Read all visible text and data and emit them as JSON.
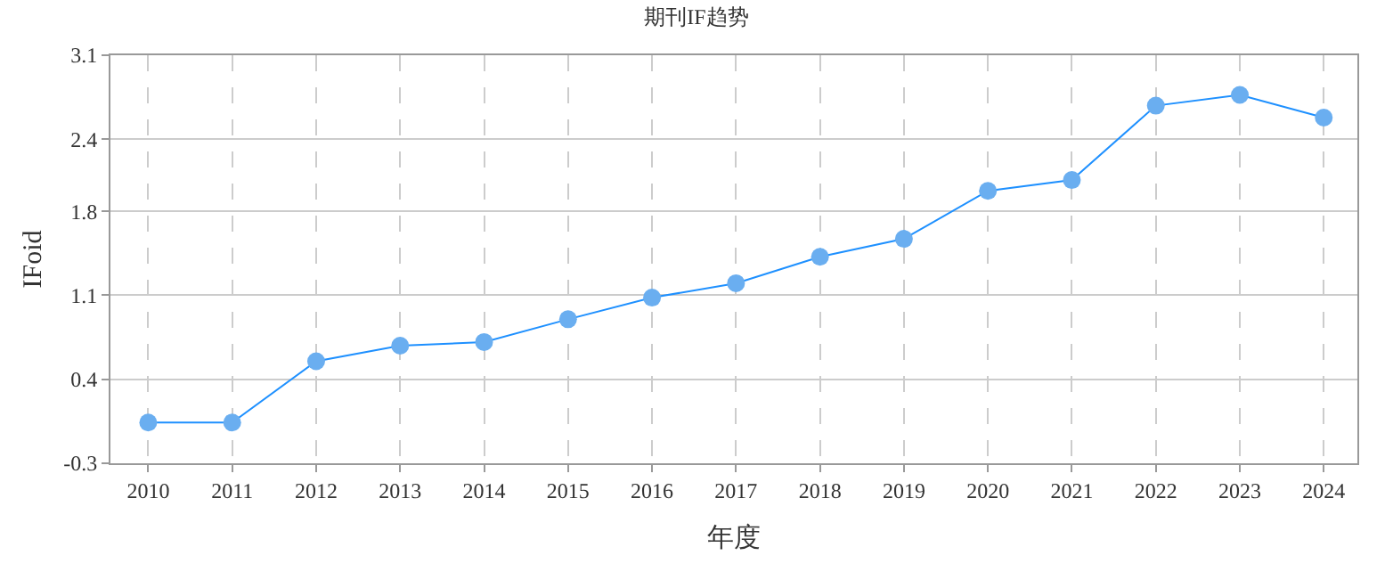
{
  "chart_data": {
    "type": "line",
    "title": "期刊IF趋势",
    "xlabel": "年度",
    "ylabel": "IFoid",
    "categories": [
      "2010",
      "2011",
      "2012",
      "2013",
      "2014",
      "2015",
      "2016",
      "2017",
      "2018",
      "2019",
      "2020",
      "2021",
      "2022",
      "2023",
      "2024"
    ],
    "series": [
      {
        "color": "#1e90ff",
        "colors": [
          "#6aaef0",
          "#6aaef0",
          "#6aaef0",
          "#6aaef0",
          "#6aaef0",
          "#6aaef0",
          "#6aaef0",
          "#6aaef0",
          "#6aaef0",
          "#6aaef0",
          "#6aaef0",
          "#6aaef0",
          "#6aaef0",
          "#6aaef0",
          "#6aaef0"
        ],
        "values": [
          0.04,
          0.04,
          0.55,
          0.68,
          0.71,
          0.9,
          1.08,
          1.2,
          1.42,
          1.57,
          1.97,
          2.06,
          2.68,
          2.77,
          2.58
        ]
      }
    ],
    "marker": "circle",
    "line_style": "solid",
    "ylim": [
      -0.3,
      3.1
    ],
    "yticks": [
      -0.3,
      0.4,
      1.1,
      1.8,
      2.4,
      3.1
    ],
    "grid": true
  }
}
